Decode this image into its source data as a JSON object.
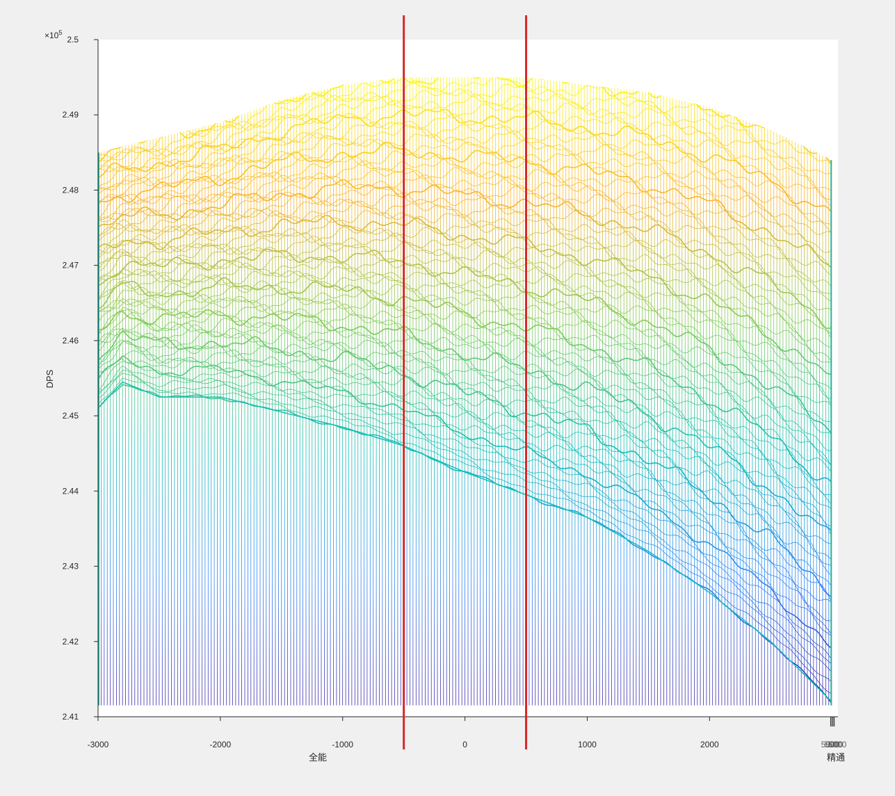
{
  "chart_data": {
    "type": "mesh",
    "title": "",
    "ylabel": "DPS",
    "y_exponent_label": "×10",
    "y_exponent_power": "5",
    "xlabel_left": "全能",
    "xlabel_right": "精通",
    "xlim": [
      -3000,
      3050
    ],
    "ylim": [
      2.41,
      2.5
    ],
    "y_ticks": [
      2.41,
      2.42,
      2.43,
      2.44,
      2.45,
      2.46,
      2.47,
      2.48,
      2.49,
      2.5
    ],
    "y_tick_labels": [
      "2.41",
      "2.42",
      "2.43",
      "2.44",
      "2.45",
      "2.46",
      "2.47",
      "2.48",
      "2.49",
      "2.5"
    ],
    "x_ticks": [
      -3000,
      -2000,
      -1000,
      0,
      1000,
      2000
    ],
    "x_tick_labels": [
      "-3000",
      "-2000",
      "-1000",
      "0",
      "1000",
      "2000"
    ],
    "x_tick_overlap_label": "5000",
    "x_tick_overlap_positions": [
      2990,
      3000,
      3010,
      3020
    ],
    "mesh_top_profile": {
      "x": [
        -3000,
        -2500,
        -2000,
        -1500,
        -1000,
        -500,
        0,
        500,
        1000,
        1500,
        2000,
        2500,
        3000
      ],
      "y": [
        2.485,
        2.487,
        2.489,
        2.492,
        2.494,
        2.495,
        2.495,
        2.495,
        2.494,
        2.493,
        2.491,
        2.488,
        2.484
      ]
    },
    "mesh_bottom_profile": {
      "x": [
        -3000,
        -2800,
        -2500,
        -2000,
        -1500,
        -1000,
        -500,
        0,
        500,
        1000,
        1500,
        2000,
        2500,
        3000
      ],
      "y": [
        2.451,
        2.4545,
        2.4525,
        2.4525,
        2.4505,
        2.4485,
        2.446,
        2.4425,
        2.4395,
        2.4365,
        2.432,
        2.4265,
        2.42,
        2.412
      ]
    },
    "mesh_baseline": 2.4115,
    "colormap": [
      "#3e26a8",
      "#2e87f7",
      "#13beb8",
      "#80cb58",
      "#f9b42f",
      "#f9fb15"
    ],
    "annotation_lines": {
      "x": [
        -500,
        500
      ],
      "color": "#d62728"
    }
  }
}
